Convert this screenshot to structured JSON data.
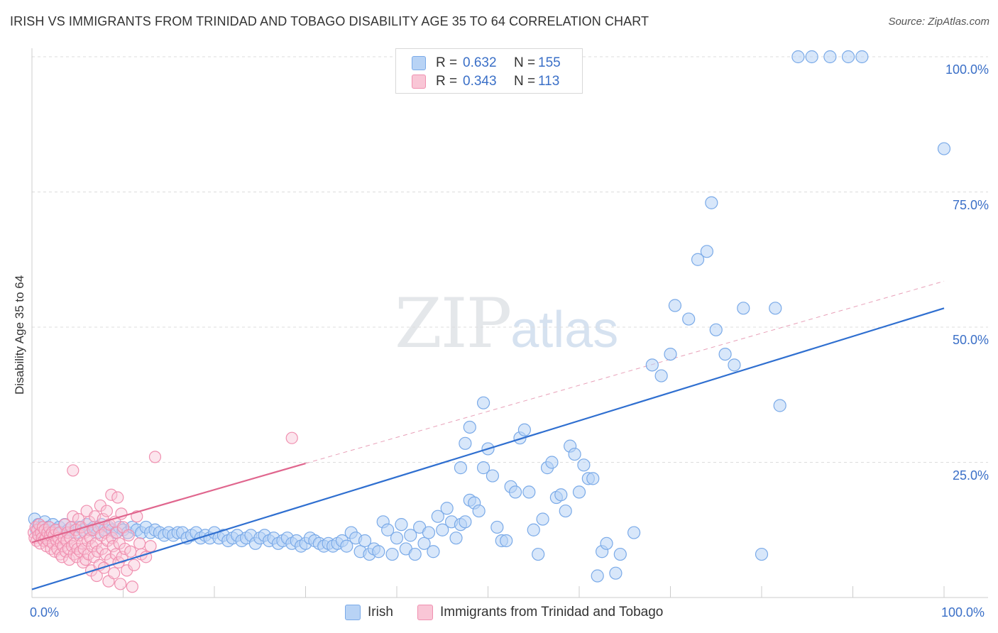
{
  "chart_data": {
    "type": "scatter",
    "title": "IRISH VS IMMIGRANTS FROM TRINIDAD AND TOBAGO DISABILITY AGE 35 TO 64 CORRELATION CHART",
    "source": "Source: ZipAtlas.com",
    "watermark": {
      "zip": "ZIP",
      "atlas": "atlas"
    },
    "xlabel": "",
    "ylabel": "Disability Age 35 to 64",
    "xlim": [
      0,
      100
    ],
    "ylim": [
      0,
      102
    ],
    "x_tick_labels": {
      "min": "0.0%",
      "max": "100.0%"
    },
    "y_ticks": [
      {
        "value": 25,
        "label": "25.0%"
      },
      {
        "value": 50,
        "label": "50.0%"
      },
      {
        "value": 75,
        "label": "75.0%"
      },
      {
        "value": 100,
        "label": "100.0%"
      }
    ],
    "grid": true,
    "legend": {
      "position": "top-center",
      "entries": [
        {
          "series": "Irish",
          "r_label": "R =",
          "r_value": "0.632",
          "n_label": "N =",
          "n_value": "155"
        },
        {
          "series": "Immigrants from Trinidad and Tobago",
          "r_label": "R =",
          "r_value": "0.343",
          "n_label": "N =",
          "n_value": "113"
        }
      ]
    },
    "series": [
      {
        "name": "Irish",
        "color": "#7aaae8",
        "fill": "#b8d3f5",
        "trend": {
          "x0": 0,
          "y0": 1.5,
          "x1": 100,
          "y1": 53.5,
          "color": "#2f6fd0"
        },
        "points": [
          [
            0.3,
            14.5
          ],
          [
            0.5,
            12.5
          ],
          [
            0.7,
            13.5
          ],
          [
            0.8,
            11.5
          ],
          [
            1.0,
            13
          ],
          [
            1.2,
            12
          ],
          [
            1.4,
            14
          ],
          [
            1.6,
            12.5
          ],
          [
            1.8,
            13
          ],
          [
            2.0,
            12
          ],
          [
            2.3,
            13.5
          ],
          [
            2.6,
            12.5
          ],
          [
            3.0,
            13
          ],
          [
            3.3,
            12
          ],
          [
            3.6,
            13.5
          ],
          [
            4.0,
            12.5
          ],
          [
            4.4,
            13
          ],
          [
            4.8,
            12
          ],
          [
            5.2,
            13
          ],
          [
            5.6,
            12.5
          ],
          [
            6.0,
            13.5
          ],
          [
            6.4,
            12.5
          ],
          [
            6.8,
            13
          ],
          [
            7.2,
            12
          ],
          [
            7.6,
            13.5
          ],
          [
            8.0,
            12.5
          ],
          [
            8.4,
            13
          ],
          [
            8.8,
            12.5
          ],
          [
            9.2,
            12
          ],
          [
            9.6,
            13
          ],
          [
            10.0,
            12.5
          ],
          [
            10.5,
            12
          ],
          [
            11.0,
            13
          ],
          [
            11.5,
            12.5
          ],
          [
            12.0,
            12
          ],
          [
            12.5,
            13
          ],
          [
            13.0,
            12
          ],
          [
            13.5,
            12.5
          ],
          [
            14.0,
            12
          ],
          [
            14.5,
            11.5
          ],
          [
            15.0,
            12
          ],
          [
            15.5,
            11.5
          ],
          [
            16.0,
            12
          ],
          [
            16.5,
            12
          ],
          [
            17.0,
            11
          ],
          [
            17.5,
            11.5
          ],
          [
            18.0,
            12
          ],
          [
            18.5,
            11
          ],
          [
            19.0,
            11.5
          ],
          [
            19.5,
            11
          ],
          [
            20.0,
            12
          ],
          [
            20.5,
            11
          ],
          [
            21.0,
            11.5
          ],
          [
            21.5,
            10.5
          ],
          [
            22.0,
            11
          ],
          [
            22.5,
            11.5
          ],
          [
            23.0,
            10.5
          ],
          [
            23.5,
            11
          ],
          [
            24.0,
            11.5
          ],
          [
            24.5,
            10
          ],
          [
            25.0,
            11
          ],
          [
            25.5,
            11.5
          ],
          [
            26.0,
            10.5
          ],
          [
            26.5,
            11
          ],
          [
            27.0,
            10
          ],
          [
            27.5,
            10.5
          ],
          [
            28.0,
            11
          ],
          [
            28.5,
            10
          ],
          [
            29.0,
            10.5
          ],
          [
            29.5,
            9.5
          ],
          [
            30.0,
            10
          ],
          [
            30.5,
            11
          ],
          [
            31.0,
            10.5
          ],
          [
            31.5,
            10
          ],
          [
            32.0,
            9.5
          ],
          [
            32.5,
            10
          ],
          [
            33.0,
            9.5
          ],
          [
            33.5,
            10
          ],
          [
            34.0,
            10.5
          ],
          [
            34.5,
            9.5
          ],
          [
            35.0,
            12
          ],
          [
            35.5,
            11
          ],
          [
            36.0,
            8.5
          ],
          [
            36.5,
            10.5
          ],
          [
            37.0,
            8
          ],
          [
            37.5,
            9
          ],
          [
            38.0,
            8.5
          ],
          [
            38.5,
            14
          ],
          [
            39.0,
            12.5
          ],
          [
            39.5,
            8
          ],
          [
            40.0,
            11
          ],
          [
            40.5,
            13.5
          ],
          [
            41.0,
            9
          ],
          [
            41.5,
            11.5
          ],
          [
            42.0,
            8
          ],
          [
            42.5,
            13
          ],
          [
            43.0,
            10
          ],
          [
            43.5,
            12
          ],
          [
            44.0,
            8.5
          ],
          [
            44.5,
            15
          ],
          [
            45.0,
            12.5
          ],
          [
            45.5,
            16.5
          ],
          [
            46.0,
            14
          ],
          [
            46.5,
            11
          ],
          [
            47.0,
            13.5
          ],
          [
            47.5,
            14
          ],
          [
            48.0,
            18
          ],
          [
            48.5,
            17.5
          ],
          [
            49.0,
            16
          ],
          [
            49.5,
            36
          ],
          [
            47.5,
            28.5
          ],
          [
            47.0,
            24
          ],
          [
            48.0,
            31.5
          ],
          [
            49.5,
            24
          ],
          [
            50.0,
            27.5
          ],
          [
            50.5,
            22.5
          ],
          [
            51.0,
            13
          ],
          [
            51.5,
            10.5
          ],
          [
            52.0,
            10.5
          ],
          [
            52.5,
            20.5
          ],
          [
            53.0,
            19.5
          ],
          [
            53.5,
            29.5
          ],
          [
            54.0,
            31
          ],
          [
            54.5,
            19.5
          ],
          [
            55.0,
            12.5
          ],
          [
            55.5,
            8
          ],
          [
            56.0,
            14.5
          ],
          [
            56.5,
            24
          ],
          [
            57.0,
            25
          ],
          [
            57.5,
            18.5
          ],
          [
            58.0,
            19
          ],
          [
            58.5,
            16
          ],
          [
            59.0,
            28
          ],
          [
            59.5,
            26.5
          ],
          [
            60.0,
            19.5
          ],
          [
            60.5,
            24.5
          ],
          [
            61.0,
            22
          ],
          [
            61.5,
            22
          ],
          [
            62.0,
            4
          ],
          [
            62.5,
            8.5
          ],
          [
            63.0,
            10
          ],
          [
            64.0,
            4.5
          ],
          [
            64.5,
            8
          ],
          [
            66.0,
            12
          ],
          [
            68.0,
            43
          ],
          [
            69.0,
            41
          ],
          [
            70.0,
            45
          ],
          [
            70.5,
            54
          ],
          [
            72.0,
            51.5
          ],
          [
            73.0,
            62.5
          ],
          [
            74.0,
            64
          ],
          [
            74.5,
            73
          ],
          [
            75.0,
            49.5
          ],
          [
            76.0,
            45
          ],
          [
            77.0,
            43
          ],
          [
            78.0,
            53.5
          ],
          [
            80.0,
            8
          ],
          [
            81.5,
            53.5
          ],
          [
            82.0,
            35.5
          ],
          [
            84.0,
            100
          ],
          [
            85.5,
            100
          ],
          [
            87.5,
            100
          ],
          [
            89.5,
            100
          ],
          [
            91.0,
            100
          ],
          [
            100.0,
            83
          ]
        ]
      },
      {
        "name": "Immigrants from Trinidad and Tobago",
        "color": "#f090b0",
        "fill": "#f9c6d6",
        "trend": {
          "x0": 0,
          "y0": 10.2,
          "x1": 30,
          "y1": 24.8,
          "color": "#e0668e"
        },
        "trend_ext": {
          "x0": 30,
          "y0": 24.8,
          "x1": 100,
          "y1": 58.5
        },
        "points": [
          [
            0.2,
            12
          ],
          [
            0.3,
            11
          ],
          [
            0.4,
            13
          ],
          [
            0.5,
            10.5
          ],
          [
            0.6,
            12.5
          ],
          [
            0.7,
            11.5
          ],
          [
            0.8,
            13.5
          ],
          [
            0.9,
            10
          ],
          [
            1.0,
            12
          ],
          [
            1.1,
            11
          ],
          [
            1.2,
            13
          ],
          [
            1.3,
            10.5
          ],
          [
            1.4,
            12.5
          ],
          [
            1.5,
            11
          ],
          [
            1.6,
            9.5
          ],
          [
            1.7,
            12
          ],
          [
            1.8,
            10.5
          ],
          [
            1.9,
            13
          ],
          [
            2.0,
            11.5
          ],
          [
            2.1,
            9
          ],
          [
            2.2,
            12
          ],
          [
            2.3,
            10
          ],
          [
            2.4,
            11.5
          ],
          [
            2.5,
            8.5
          ],
          [
            2.6,
            12.5
          ],
          [
            2.7,
            10.5
          ],
          [
            2.8,
            9
          ],
          [
            2.9,
            11
          ],
          [
            3.0,
            12
          ],
          [
            3.1,
            8
          ],
          [
            3.2,
            10
          ],
          [
            3.3,
            7.5
          ],
          [
            3.4,
            9.5
          ],
          [
            3.5,
            11
          ],
          [
            3.6,
            13.5
          ],
          [
            3.7,
            8.5
          ],
          [
            3.8,
            10.5
          ],
          [
            3.9,
            12
          ],
          [
            4.0,
            9
          ],
          [
            4.1,
            7
          ],
          [
            4.2,
            11
          ],
          [
            4.3,
            13
          ],
          [
            4.4,
            9.5
          ],
          [
            4.5,
            15
          ],
          [
            4.6,
            8
          ],
          [
            4.7,
            10
          ],
          [
            4.8,
            12.5
          ],
          [
            4.9,
            7.5
          ],
          [
            5.0,
            9
          ],
          [
            5.1,
            14.5
          ],
          [
            5.2,
            11.5
          ],
          [
            5.3,
            8.5
          ],
          [
            5.4,
            13
          ],
          [
            5.5,
            10
          ],
          [
            5.6,
            6.5
          ],
          [
            5.7,
            9
          ],
          [
            5.8,
            12
          ],
          [
            5.9,
            7
          ],
          [
            6.0,
            16
          ],
          [
            6.1,
            10.5
          ],
          [
            6.2,
            8
          ],
          [
            6.3,
            14
          ],
          [
            6.4,
            11
          ],
          [
            6.5,
            5
          ],
          [
            6.6,
            9.5
          ],
          [
            6.7,
            12.5
          ],
          [
            6.8,
            7.5
          ],
          [
            6.9,
            15
          ],
          [
            7.0,
            10
          ],
          [
            7.1,
            4
          ],
          [
            7.2,
            8.5
          ],
          [
            7.3,
            13
          ],
          [
            7.4,
            6
          ],
          [
            7.5,
            17
          ],
          [
            7.6,
            11.5
          ],
          [
            7.7,
            9
          ],
          [
            7.8,
            14.5
          ],
          [
            7.9,
            5.5
          ],
          [
            8.0,
            12
          ],
          [
            8.1,
            8
          ],
          [
            8.2,
            16
          ],
          [
            8.3,
            10.5
          ],
          [
            8.4,
            3
          ],
          [
            8.5,
            13.5
          ],
          [
            8.6,
            7
          ],
          [
            8.7,
            19
          ],
          [
            8.8,
            11
          ],
          [
            8.9,
            9.5
          ],
          [
            9.0,
            4.5
          ],
          [
            9.1,
            14
          ],
          [
            9.2,
            8
          ],
          [
            9.3,
            12
          ],
          [
            9.4,
            18.5
          ],
          [
            9.5,
            6.5
          ],
          [
            9.6,
            10
          ],
          [
            9.7,
            2.5
          ],
          [
            9.8,
            15.5
          ],
          [
            9.9,
            7.5
          ],
          [
            10.0,
            13
          ],
          [
            10.2,
            9
          ],
          [
            10.4,
            5
          ],
          [
            10.6,
            11.5
          ],
          [
            10.8,
            8.5
          ],
          [
            11.0,
            2
          ],
          [
            11.2,
            6
          ],
          [
            11.5,
            15
          ],
          [
            11.8,
            10
          ],
          [
            12.0,
            8
          ],
          [
            12.5,
            7.5
          ],
          [
            13.0,
            9.5
          ],
          [
            13.5,
            26
          ],
          [
            4.5,
            23.5
          ],
          [
            28.5,
            29.5
          ]
        ]
      }
    ]
  }
}
